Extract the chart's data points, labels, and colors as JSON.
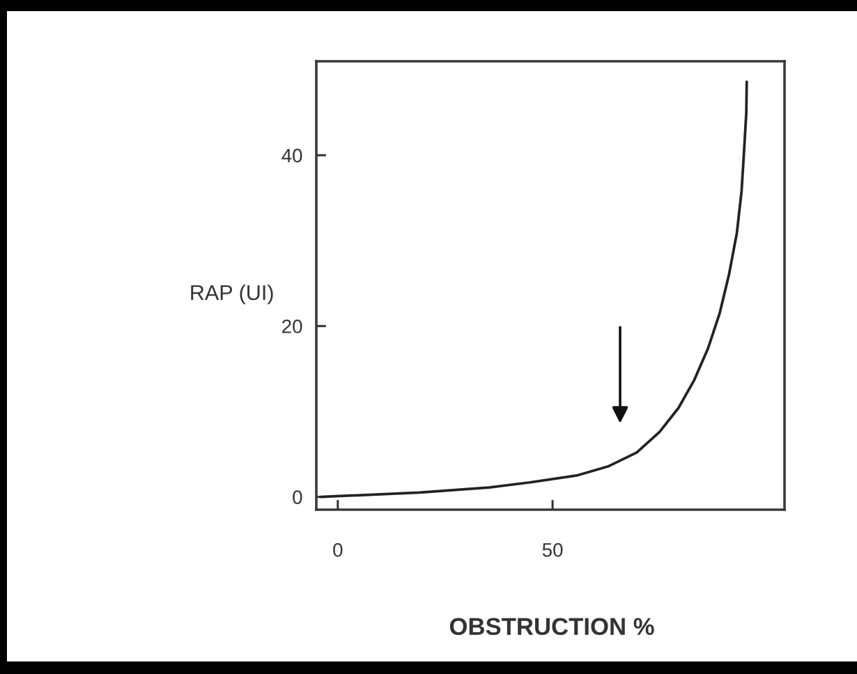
{
  "chart_data": {
    "type": "line",
    "xlabel": "OBSTRUCTION %",
    "ylabel": "RAP (UI)",
    "x": [
      -4,
      19,
      35.2,
      44.8,
      55.6,
      63.1,
      69.6,
      74.9,
      79.3,
      83.0,
      86.2,
      88.9,
      91.1,
      92.9,
      94.0,
      94.6,
      95.1,
      95.2
    ],
    "series": [
      {
        "color": "#222222",
        "values": [
          0,
          0.5,
          1.1,
          1.7,
          2.5,
          3.6,
          5.2,
          7.6,
          10.4,
          13.7,
          17.4,
          21.5,
          26.1,
          30.9,
          35.8,
          40.7,
          45.0,
          48.6
        ]
      }
    ],
    "xlim": [
      -5,
      104
    ],
    "ylim": [
      -1.5,
      51
    ],
    "xticks": [
      0,
      50
    ],
    "yticks": [
      0,
      20,
      40
    ],
    "line_style": "solid"
  }
}
